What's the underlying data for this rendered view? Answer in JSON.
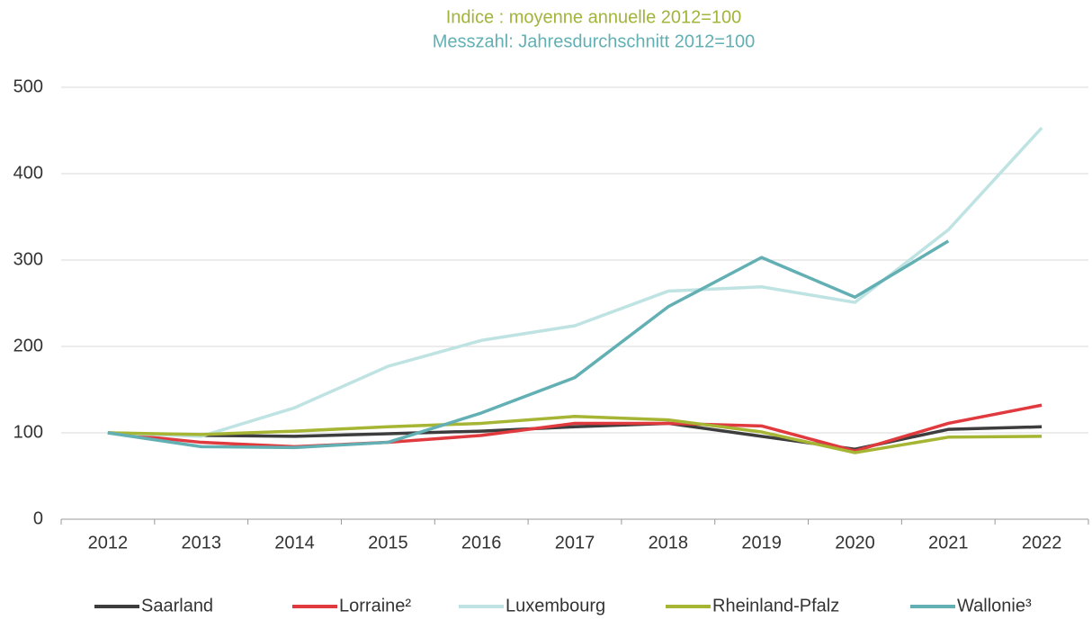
{
  "chart_data": {
    "type": "line",
    "title": "Indice : moyenne annuelle 2012=100",
    "subtitle": "Messzahl: Jahresdurchschnitt 2012=100",
    "title_color": "#a3b43a",
    "subtitle_color": "#62b0b3",
    "categories": [
      "2012",
      "2013",
      "2014",
      "2015",
      "2016",
      "2017",
      "2018",
      "2019",
      "2020",
      "2021",
      "2022"
    ],
    "series": [
      {
        "name": "Saarland",
        "color": "#3d3d3d",
        "values": [
          100,
          97,
          96,
          99,
          102,
          107,
          111,
          96,
          81,
          104,
          107
        ]
      },
      {
        "name": "Lorraine²",
        "color": "#e03a3e",
        "values": [
          100,
          89,
          84,
          89,
          97,
          111,
          111,
          108,
          79,
          111,
          132
        ]
      },
      {
        "name": "Luxembourg",
        "color": "#bfe3e3",
        "values": [
          100,
          96,
          129,
          177,
          207,
          224,
          264,
          269,
          251,
          335,
          453
        ]
      },
      {
        "name": "Rheinland-Pfalz",
        "color": "#a6b533",
        "values": [
          100,
          98,
          102,
          107,
          111,
          119,
          115,
          101,
          77,
          95,
          96
        ]
      },
      {
        "name": "Wallonie³",
        "color": "#62b0b3",
        "values": [
          100,
          84,
          83,
          89,
          123,
          164,
          246,
          303,
          257,
          322,
          null
        ]
      }
    ],
    "ylim": [
      0,
      500
    ],
    "yticks": [
      0,
      100,
      200,
      300,
      400,
      500
    ],
    "grid": true,
    "legend": "bottom"
  }
}
